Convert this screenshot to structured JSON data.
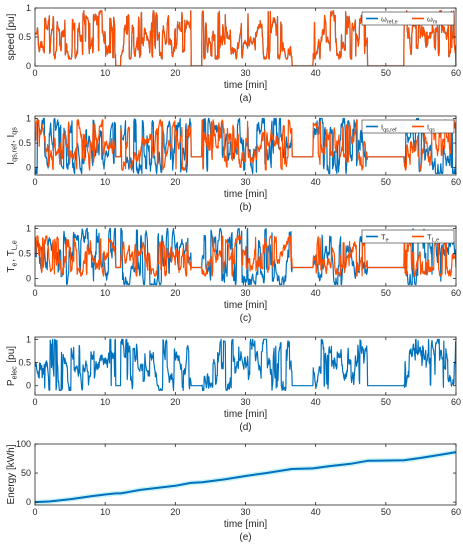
{
  "colors": {
    "blue": "#0072BD",
    "orange": "#FF4D00",
    "band": "#C9F2F7",
    "axis": "#262626",
    "grid": "#e6e6e6"
  },
  "chart_data": [
    {
      "type": "line",
      "panel_label": "(a)",
      "ylabel": "speed [pu]",
      "xlabel": "time [min]",
      "xlim": [
        0,
        60
      ],
      "ylim": [
        0,
        1
      ],
      "xticks": [
        0,
        10,
        20,
        30,
        40,
        50,
        60
      ],
      "yticks": [
        0,
        0.5,
        1
      ],
      "ytick_labels": [
        "0",
        "0.5",
        "1"
      ],
      "legend": {
        "placement": "top-right",
        "entries": [
          "ω_ref,e",
          "ω_m"
        ]
      },
      "series": [
        {
          "name": "ω_ref,e",
          "color": "blue",
          "profile": "speed",
          "segments": [
            [
              0,
              11.5
            ],
            [
              12.2,
              22.2
            ],
            [
              23.8,
              36.6
            ],
            [
              39.6,
              47.4
            ],
            [
              52.6,
              60
            ]
          ],
          "rest": 0.0,
          "range": [
            0.12,
            0.95
          ],
          "seed": 11
        },
        {
          "name": "ω_m",
          "color": "orange",
          "profile": "speed",
          "segments": [
            [
              0,
              11.5
            ],
            [
              12.2,
              22.2
            ],
            [
              23.8,
              36.6
            ],
            [
              39.6,
              47.4
            ],
            [
              52.6,
              60
            ]
          ],
          "rest": 0.0,
          "range": [
            0.12,
            0.95
          ],
          "seed": 11
        }
      ]
    },
    {
      "type": "line",
      "panel_label": "(b)",
      "ylabel": "I_qs,ref, I_qs",
      "xlabel": "time [min]",
      "xlim": [
        0,
        60
      ],
      "ylim": [
        -0.15,
        1.05
      ],
      "xticks": [
        0,
        10,
        20,
        30,
        40,
        50,
        60
      ],
      "yticks": [
        0,
        0.5,
        1
      ],
      "ytick_labels": [
        "0",
        "0.5",
        "1"
      ],
      "legend": {
        "placement": "top-right",
        "entries": [
          "I_qs,ref",
          "I_qs"
        ]
      },
      "series": [
        {
          "name": "I_qs,ref",
          "color": "blue",
          "profile": "torque",
          "segments": [
            [
              0,
              11.5
            ],
            [
              12.2,
              22.2
            ],
            [
              23.8,
              36.6
            ],
            [
              39.6,
              47.4
            ],
            [
              52.6,
              60
            ]
          ],
          "rest": 0.22,
          "range": [
            -0.12,
            1.0
          ],
          "seed": 23
        },
        {
          "name": "I_qs",
          "color": "orange",
          "profile": "torque",
          "segments": [
            [
              0,
              11.5
            ],
            [
              12.2,
              22.2
            ],
            [
              23.8,
              36.6
            ],
            [
              39.6,
              47.4
            ],
            [
              52.6,
              60
            ]
          ],
          "rest": 0.22,
          "range": [
            -0.05,
            0.97
          ],
          "seed": 37
        }
      ]
    },
    {
      "type": "line",
      "panel_label": "(c)",
      "ylabel": "T_e, T_L,e",
      "xlabel": "time [min]",
      "xlim": [
        0,
        60
      ],
      "ylim": [
        -0.15,
        1.05
      ],
      "xticks": [
        0,
        10,
        20,
        30,
        40,
        50,
        60
      ],
      "yticks": [
        0,
        0.5,
        1
      ],
      "ytick_labels": [
        "0",
        "0.5",
        "1"
      ],
      "legend": {
        "placement": "top-right",
        "entries": [
          "T_e",
          "T_L,e"
        ]
      },
      "series": [
        {
          "name": "T_e",
          "color": "blue",
          "profile": "torque",
          "segments": [
            [
              0,
              11.5
            ],
            [
              12.2,
              22.2
            ],
            [
              23.8,
              36.6
            ],
            [
              39.6,
              47.4
            ],
            [
              52.6,
              60
            ]
          ],
          "rest": 0.22,
          "range": [
            -0.12,
            1.0
          ],
          "seed": 41
        },
        {
          "name": "T_L,e",
          "color": "orange",
          "profile": "torque",
          "segments": [
            [
              0,
              11.5
            ],
            [
              12.2,
              22.2
            ],
            [
              23.8,
              36.6
            ],
            [
              39.6,
              47.4
            ],
            [
              52.6,
              60
            ]
          ],
          "rest": 0.22,
          "range": [
            0.05,
            0.85
          ],
          "seed": 53
        }
      ]
    },
    {
      "type": "line",
      "panel_label": "(d)",
      "ylabel": "P_elec [pu]",
      "xlabel": "time [min]",
      "xlim": [
        0,
        60
      ],
      "ylim": [
        -0.2,
        1.05
      ],
      "xticks": [
        0,
        10,
        20,
        30,
        40,
        50,
        60
      ],
      "yticks": [
        0,
        0.5,
        1
      ],
      "ytick_labels": [
        "0",
        "0.5",
        "1"
      ],
      "series": [
        {
          "name": "",
          "color": "blue",
          "profile": "power",
          "segments": [
            [
              0,
              11.5
            ],
            [
              12.2,
              22.2
            ],
            [
              23.8,
              36.6
            ],
            [
              39.6,
              47.4
            ],
            [
              52.6,
              60
            ]
          ],
          "rest": 0.0,
          "range": [
            -0.1,
            1.0
          ],
          "seed": 67
        }
      ]
    },
    {
      "type": "line",
      "panel_label": "(e)",
      "ylabel": "Energy [kWh]",
      "xlabel": "time [min]",
      "xlim": [
        0,
        60
      ],
      "ylim": [
        -5,
        100
      ],
      "xticks": [
        0,
        10,
        20,
        30,
        40,
        50,
        60
      ],
      "yticks": [
        0,
        50,
        100
      ],
      "ytick_labels": [
        "0",
        "50",
        "100"
      ],
      "series": [
        {
          "name": "",
          "color": "blue",
          "profile": "points",
          "x": [
            0,
            2,
            5,
            8,
            10,
            11.5,
            12.2,
            15,
            20,
            22.2,
            23.8,
            27,
            30,
            33,
            36.6,
            39.6,
            42,
            45,
            47.4,
            52.6,
            55,
            58,
            60
          ],
          "y": [
            0,
            1,
            5,
            10,
            13,
            15,
            15,
            21,
            28,
            33,
            34,
            39,
            45,
            50,
            57,
            58,
            62,
            66,
            71,
            72,
            76,
            82,
            86
          ]
        }
      ]
    }
  ]
}
